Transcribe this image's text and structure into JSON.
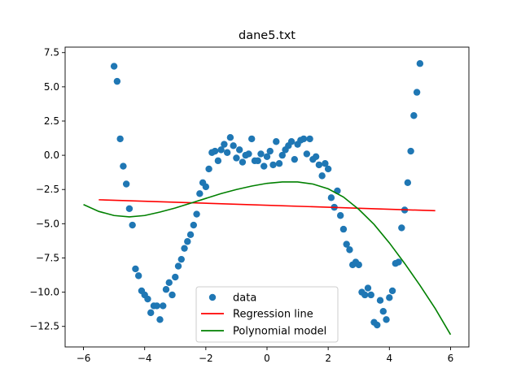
{
  "chart_data": {
    "type": "scatter",
    "title": "dane5.txt",
    "xlabel": "",
    "ylabel": "",
    "xlim": [
      -6.6,
      6.6
    ],
    "ylim": [
      -14.0,
      7.9
    ],
    "xticks": [
      -6,
      -4,
      -2,
      0,
      2,
      4,
      6
    ],
    "yticks": [
      -12.5,
      -10.0,
      -7.5,
      -5.0,
      -2.5,
      0.0,
      2.5,
      5.0,
      7.5
    ],
    "xtick_labels": [
      "−6",
      "−4",
      "−2",
      "0",
      "2",
      "4",
      "6"
    ],
    "ytick_labels": [
      "−12.5",
      "−10.0",
      "−7.5",
      "−5.0",
      "−2.5",
      "0.0",
      "2.5",
      "5.0",
      "7.5"
    ],
    "grid": false,
    "legend_position": "lower-center",
    "series": [
      {
        "name": "data",
        "kind": "scatter",
        "color": "#1f77b4",
        "x": [
          -5.0,
          -4.9,
          -4.8,
          -4.7,
          -4.6,
          -4.5,
          -4.4,
          -4.3,
          -4.2,
          -4.1,
          -4.0,
          -3.9,
          -3.8,
          -3.7,
          -3.6,
          -3.5,
          -3.4,
          -3.3,
          -3.2,
          -3.1,
          -3.0,
          -2.9,
          -2.8,
          -2.7,
          -2.6,
          -2.5,
          -2.4,
          -2.3,
          -2.2,
          -2.1,
          -2.0,
          -1.9,
          -1.8,
          -1.7,
          -1.6,
          -1.5,
          -1.4,
          -1.3,
          -1.2,
          -1.1,
          -1.0,
          -0.9,
          -0.8,
          -0.7,
          -0.6,
          -0.5,
          -0.4,
          -0.3,
          -0.2,
          -0.1,
          0.0,
          0.1,
          0.2,
          0.3,
          0.4,
          0.5,
          0.6,
          0.7,
          0.8,
          0.9,
          1.0,
          1.1,
          1.2,
          1.3,
          1.4,
          1.5,
          1.6,
          1.7,
          1.8,
          1.9,
          2.0,
          2.1,
          2.2,
          2.3,
          2.4,
          2.5,
          2.6,
          2.7,
          2.8,
          2.9,
          3.0,
          3.1,
          3.2,
          3.3,
          3.4,
          3.5,
          3.6,
          3.7,
          3.8,
          3.9,
          4.0,
          4.1,
          4.2,
          4.3,
          4.4,
          4.5,
          4.6,
          4.7,
          4.8,
          4.9,
          5.0
        ],
        "y": [
          6.5,
          5.4,
          1.2,
          -0.8,
          -2.1,
          -3.9,
          -5.1,
          -8.3,
          -8.8,
          -9.9,
          -10.2,
          -10.5,
          -11.5,
          -11.0,
          -11.0,
          -12.0,
          -11.0,
          -9.8,
          -9.3,
          -10.2,
          -8.9,
          -8.1,
          -7.6,
          -6.8,
          -6.3,
          -5.8,
          -5.1,
          -4.3,
          -2.8,
          -2.0,
          -2.3,
          -1.0,
          0.2,
          0.3,
          -0.4,
          0.4,
          0.8,
          0.2,
          1.3,
          0.7,
          -0.2,
          0.4,
          -0.5,
          0.0,
          0.1,
          1.2,
          -0.4,
          -0.4,
          0.1,
          -0.8,
          -0.1,
          0.3,
          -0.7,
          1.0,
          -0.6,
          0.0,
          0.4,
          0.7,
          1.0,
          -0.3,
          0.8,
          1.1,
          1.2,
          0.1,
          1.2,
          -0.3,
          -0.1,
          -0.7,
          -1.5,
          -0.6,
          -1.0,
          -3.1,
          -3.8,
          -2.6,
          -4.4,
          -5.4,
          -6.5,
          -6.9,
          -8.0,
          -7.8,
          -8.0,
          -10.0,
          -10.2,
          -9.7,
          -10.2,
          -12.2,
          -12.4,
          -10.6,
          -11.4,
          -12.0,
          -10.4,
          -9.9,
          -7.9,
          -7.8,
          -5.3,
          -4.0,
          -2.0,
          0.3,
          2.9,
          4.6,
          6.7
        ]
      },
      {
        "name": "Regression line",
        "kind": "line",
        "color": "#ff0000",
        "x": [
          -5.5,
          5.5
        ],
        "y": [
          -3.25,
          -4.05
        ]
      },
      {
        "name": "Polynomial model",
        "kind": "line",
        "color": "#008000",
        "x": [
          -6.0,
          -5.5,
          -5.0,
          -4.5,
          -4.0,
          -3.5,
          -3.0,
          -2.5,
          -2.0,
          -1.5,
          -1.0,
          -0.5,
          0.0,
          0.5,
          1.0,
          1.5,
          2.0,
          2.5,
          3.0,
          3.5,
          4.0,
          4.5,
          5.0,
          5.5,
          6.0
        ],
        "y": [
          -3.6,
          -4.1,
          -4.4,
          -4.5,
          -4.4,
          -4.15,
          -3.85,
          -3.5,
          -3.15,
          -2.8,
          -2.5,
          -2.25,
          -2.05,
          -1.95,
          -1.95,
          -2.1,
          -2.45,
          -3.05,
          -3.95,
          -5.05,
          -6.4,
          -7.9,
          -9.5,
          -11.2,
          -13.1
        ]
      }
    ]
  }
}
